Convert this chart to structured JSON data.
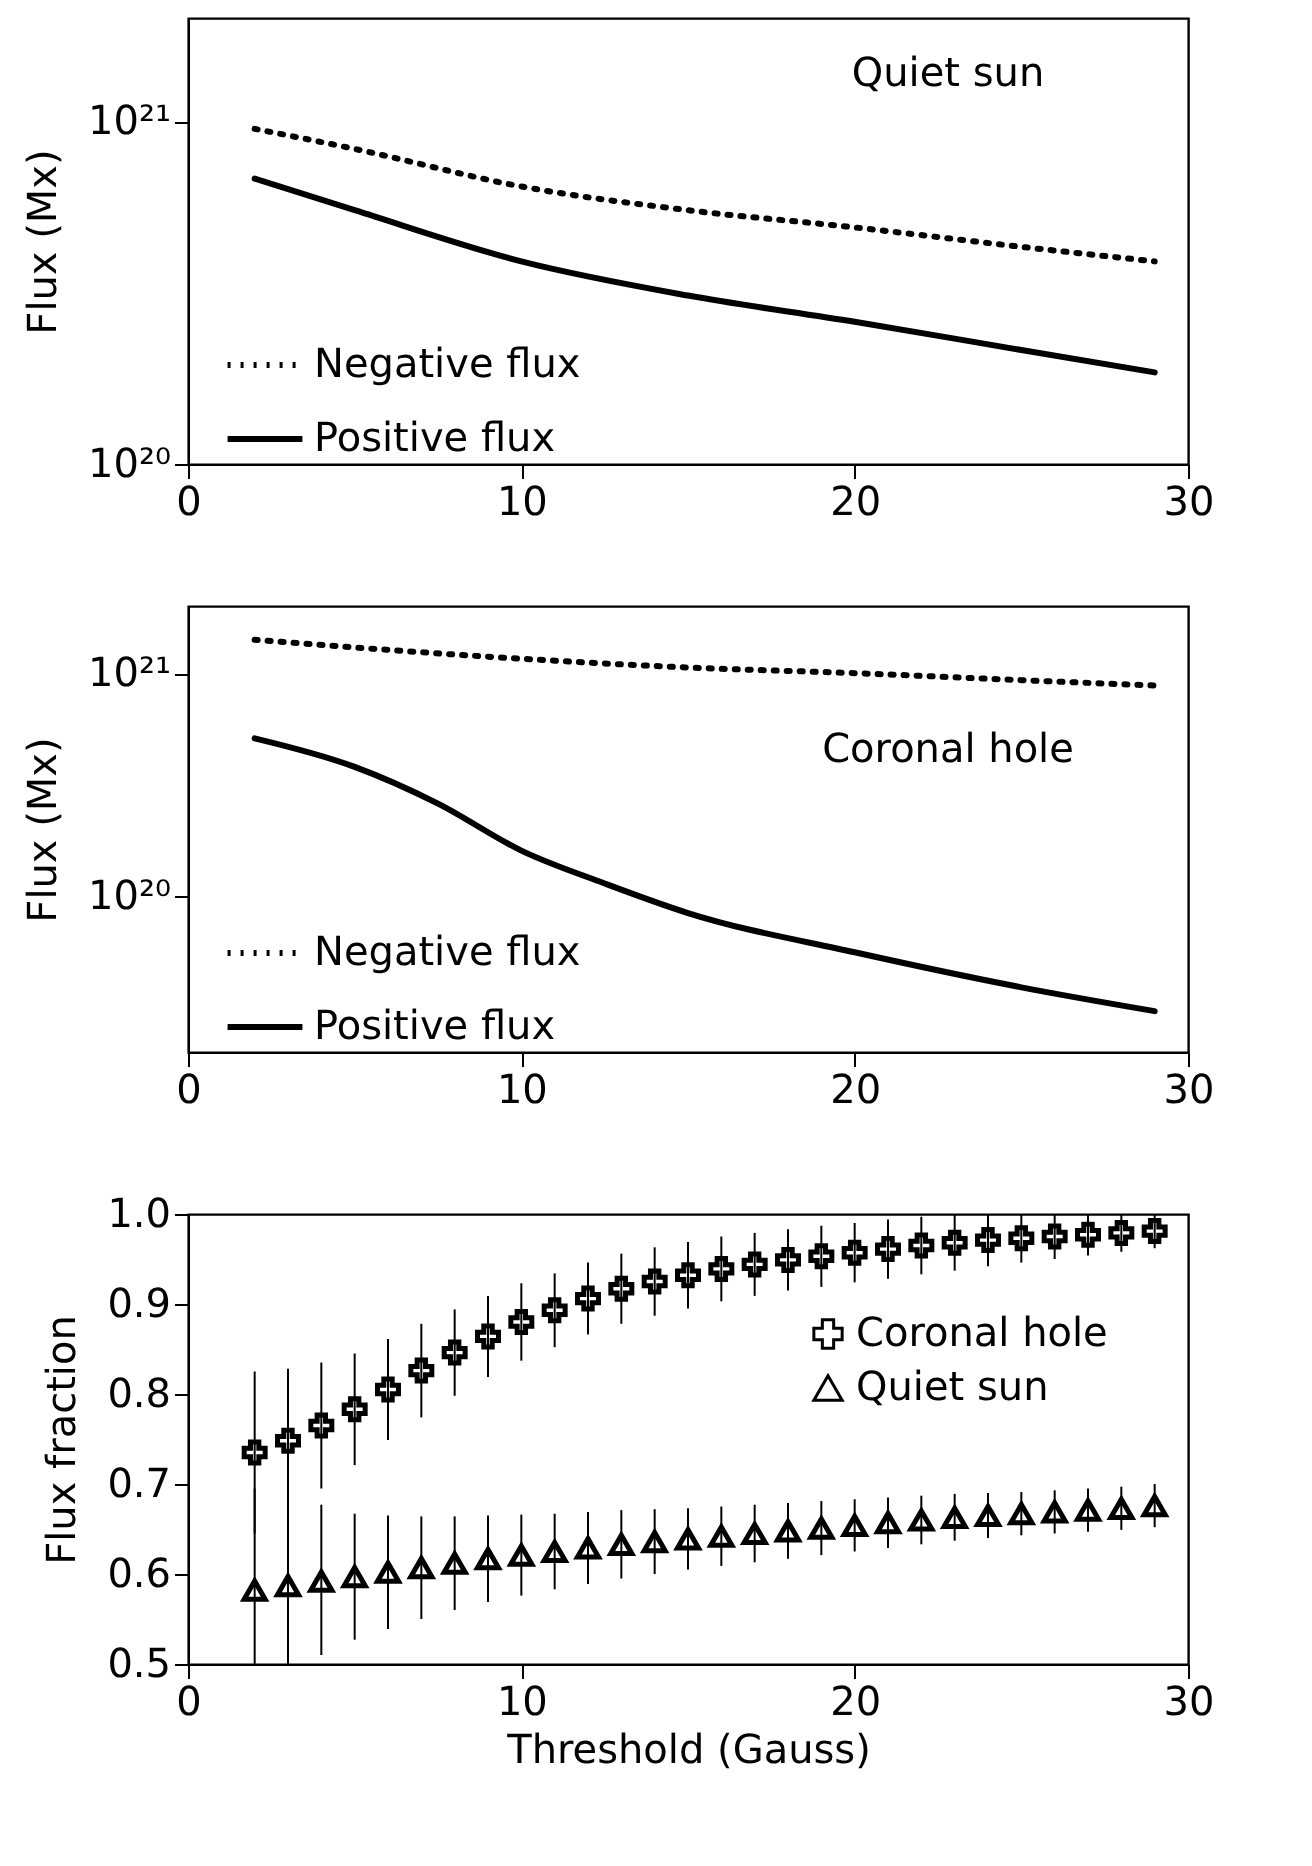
{
  "chart_data": [
    {
      "type": "line",
      "ylabel": "Flux (Mx)",
      "annotations": [
        "Quiet sun"
      ],
      "log": "y",
      "grid": false,
      "legend": "bottom left",
      "xlim": [
        0,
        30
      ],
      "xticks": [
        0,
        10,
        20,
        30
      ],
      "ylim": [
        1e+20,
        2e+21
      ],
      "yticks": [
        {
          "value": 1e+20,
          "label": "10²⁰"
        },
        {
          "value": 1e+21,
          "label": "10²¹"
        }
      ],
      "marker": "none",
      "series": [
        {
          "name": "Negative flux",
          "color": "#000000",
          "line_style": "dotted",
          "x": [
            2,
            5,
            10,
            15,
            20,
            25,
            29
          ],
          "values": [
            9.5e+20,
            8.3e+20,
            6.45e+20,
            5.5e+20,
            4.9e+20,
            4.3e+20,
            3.9e+20
          ]
        },
        {
          "name": "Positive flux",
          "color": "#000000",
          "line_style": "solid",
          "x": [
            2,
            5,
            10,
            15,
            20,
            25,
            29
          ],
          "values": [
            6.8e+20,
            5.5e+20,
            3.9e+20,
            3.1e+20,
            2.6e+20,
            2.15e+20,
            1.85e+20
          ]
        }
      ]
    },
    {
      "type": "line",
      "ylabel": "Flux (Mx)",
      "annotations": [
        "Coronal hole"
      ],
      "log": "y",
      "grid": false,
      "legend": "bottom left",
      "xlim": [
        0,
        30
      ],
      "xticks": [
        0,
        10,
        20,
        30
      ],
      "ylim": [
        2e+19,
        2e+21
      ],
      "yticks": [
        {
          "value": 1e+20,
          "label": "10²⁰"
        },
        {
          "value": 1e+21,
          "label": "10²¹"
        }
      ],
      "marker": "none",
      "series": [
        {
          "name": "Negative flux",
          "color": "#000000",
          "line_style": "dotted",
          "x": [
            2,
            10,
            15,
            20,
            25,
            29
          ],
          "values": [
            1.41e+21,
            1.16e+21,
            1.06e+21,
            1e+21,
            9.3e+20,
            8.8e+20
          ]
        },
        {
          "name": "Positive flux",
          "color": "#000000",
          "line_style": "solid",
          "x": [
            2,
            5,
            7.5,
            10,
            12.5,
            15,
            20,
            25,
            29
          ],
          "values": [
            5.1e+20,
            3.8e+20,
            2.6e+20,
            1.6e+20,
            1.14e+20,
            8.4e+19,
            5.6e+19,
            3.9e+19,
            3.05e+19
          ]
        }
      ]
    },
    {
      "type": "scatter",
      "xlabel": "Threshold (Gauss)",
      "ylabel": "Flux fraction",
      "grid": false,
      "legend": "top right",
      "xlim": [
        0,
        30
      ],
      "xticks": [
        0,
        10,
        20,
        30
      ],
      "ylim": [
        0.5,
        1.0
      ],
      "yticks": [
        0.5,
        0.6,
        0.7,
        0.8,
        0.9,
        {
          "value": 1.0,
          "label": "1.0"
        }
      ],
      "series": [
        {
          "name": "Coronal hole",
          "color": "#000000",
          "marker": "cross",
          "x": [
            2,
            3,
            4,
            5,
            6,
            7,
            8,
            9,
            10,
            11,
            12,
            13,
            14,
            15,
            16,
            17,
            18,
            19,
            20,
            21,
            22,
            23,
            24,
            25,
            26,
            27,
            28,
            29
          ],
          "values": [
            0.735,
            0.748,
            0.765,
            0.783,
            0.805,
            0.826,
            0.846,
            0.864,
            0.88,
            0.893,
            0.906,
            0.917,
            0.925,
            0.932,
            0.939,
            0.944,
            0.949,
            0.953,
            0.957,
            0.961,
            0.965,
            0.968,
            0.971,
            0.973,
            0.975,
            0.977,
            0.979,
            0.981
          ],
          "errors": [
            0.09,
            0.08,
            0.07,
            0.062,
            0.056,
            0.052,
            0.048,
            0.045,
            0.043,
            0.041,
            0.04,
            0.039,
            0.038,
            0.037,
            0.036,
            0.035,
            0.034,
            0.034,
            0.033,
            0.033,
            0.032,
            0.031,
            0.029,
            0.027,
            0.025,
            0.023,
            0.021,
            0.019
          ]
        },
        {
          "name": "Quiet sun",
          "color": "#000000",
          "marker": "triangle",
          "x": [
            2,
            3,
            4,
            5,
            6,
            7,
            8,
            9,
            10,
            11,
            12,
            13,
            14,
            15,
            16,
            17,
            18,
            19,
            20,
            21,
            22,
            23,
            24,
            25,
            26,
            27,
            28,
            29
          ],
          "values": [
            0.582,
            0.587,
            0.592,
            0.597,
            0.602,
            0.607,
            0.612,
            0.617,
            0.621,
            0.625,
            0.629,
            0.633,
            0.636,
            0.639,
            0.642,
            0.645,
            0.648,
            0.651,
            0.654,
            0.657,
            0.66,
            0.663,
            0.665,
            0.667,
            0.669,
            0.671,
            0.673,
            0.676
          ],
          "errors": [
            [
              0.5,
              0.695
            ],
            [
              0.5,
              0.685
            ],
            [
              0.51,
              0.677
            ],
            0.07,
            0.063,
            0.057,
            0.052,
            0.048,
            0.045,
            0.042,
            0.04,
            0.038,
            0.036,
            0.034,
            0.033,
            0.032,
            0.031,
            0.03,
            0.029,
            0.028,
            0.027,
            0.026,
            0.025,
            0.024,
            0.024,
            0.024,
            0.024,
            0.024
          ]
        }
      ]
    }
  ]
}
